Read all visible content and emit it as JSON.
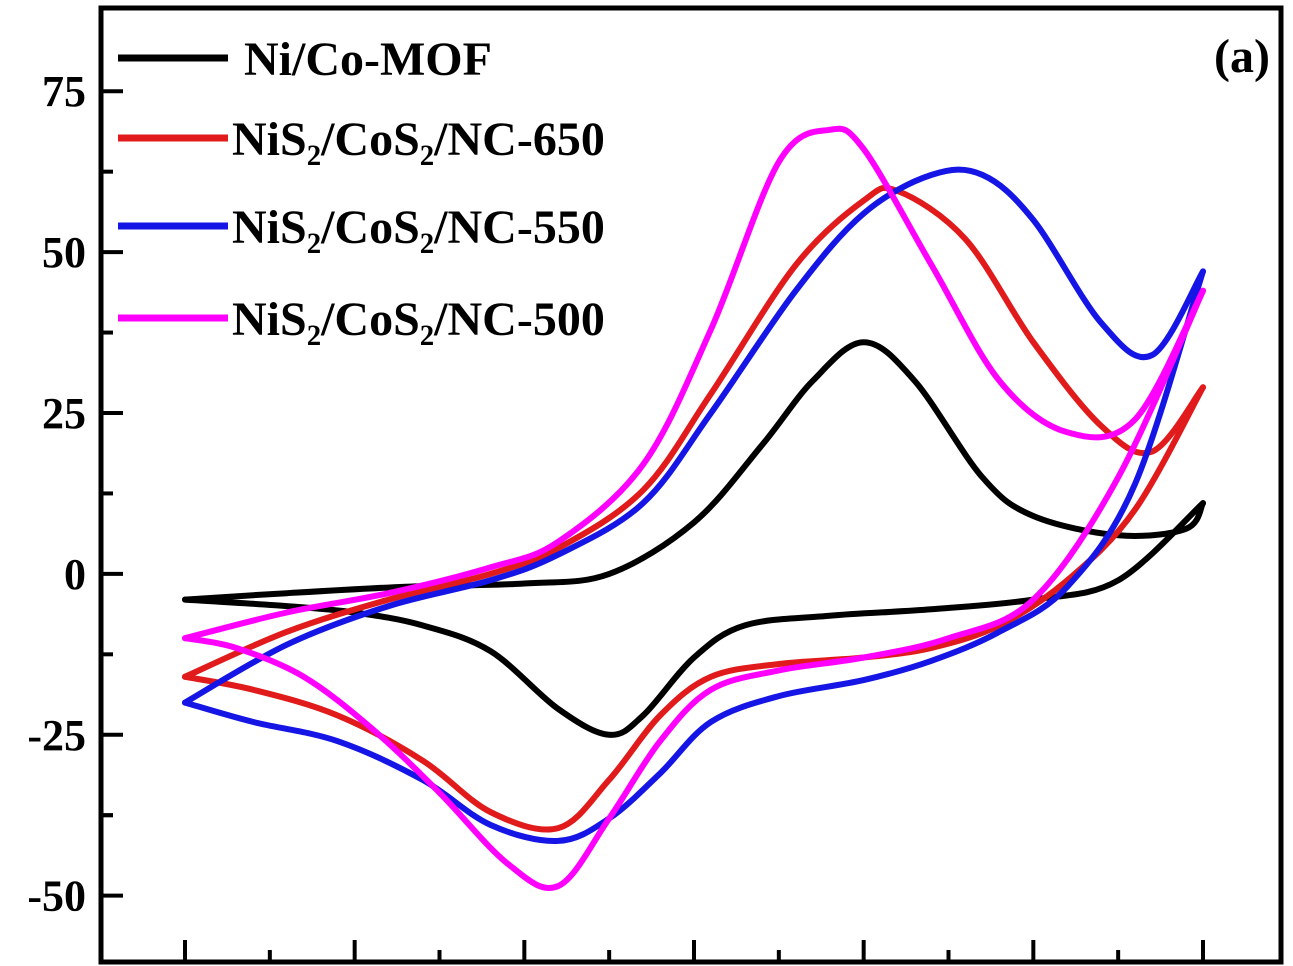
{
  "chart_data": {
    "type": "line",
    "title": "",
    "xlabel": "",
    "ylabel": "",
    "panel_label": "(a)",
    "ylim": [
      -60,
      87
    ],
    "xlim": [
      -0.1,
      0.65
    ],
    "yticks": [
      -50,
      -25,
      0,
      25,
      50,
      75
    ],
    "ytick_labels": [
      "-50",
      "-25",
      "0",
      "25",
      "50",
      "75"
    ],
    "xticks": [
      0.0,
      0.1,
      0.2,
      0.3,
      0.4,
      0.5,
      0.6
    ],
    "grid": false,
    "legend_position": "top-left",
    "series": [
      {
        "name": "Ni/Co-MOF",
        "color": "#000000",
        "forward": {
          "x": [
            0.0,
            0.06,
            0.13,
            0.2,
            0.25,
            0.3,
            0.34,
            0.37,
            0.4,
            0.43,
            0.47,
            0.5,
            0.55,
            0.59,
            0.6
          ],
          "y": [
            -4,
            -3,
            -2,
            -1.5,
            0,
            8,
            20,
            30,
            36,
            30,
            15,
            9,
            6,
            7,
            11
          ]
        },
        "reverse": {
          "x": [
            0.6,
            0.55,
            0.5,
            0.44,
            0.38,
            0.33,
            0.3,
            0.27,
            0.25,
            0.22,
            0.18,
            0.14,
            0.1,
            0.06,
            0.0
          ],
          "y": [
            11,
            -1,
            -4,
            -5.5,
            -6.5,
            -8,
            -13,
            -22,
            -25,
            -21,
            -12,
            -8,
            -6,
            -5,
            -4
          ]
        }
      },
      {
        "name": "NiS₂/CoS₂/NC-650",
        "color": "#e11b1b",
        "forward": {
          "x": [
            0.0,
            0.06,
            0.12,
            0.18,
            0.22,
            0.27,
            0.31,
            0.36,
            0.4,
            0.42,
            0.46,
            0.5,
            0.54,
            0.57,
            0.6
          ],
          "y": [
            -16,
            -9,
            -4,
            0,
            4,
            13,
            28,
            48,
            58,
            59.5,
            52,
            36,
            23,
            19,
            29
          ]
        },
        "reverse": {
          "x": [
            0.6,
            0.56,
            0.52,
            0.48,
            0.44,
            0.4,
            0.35,
            0.31,
            0.28,
            0.25,
            0.22,
            0.18,
            0.14,
            0.09,
            0.04,
            0.0
          ],
          "y": [
            29,
            10,
            -1,
            -8,
            -11.5,
            -13,
            -14,
            -16,
            -22,
            -32,
            -39.5,
            -37,
            -29,
            -22,
            -18,
            -16
          ]
        }
      },
      {
        "name": "NiS₂/CoS₂/NC-550",
        "color": "#1515e6",
        "forward": {
          "x": [
            0.0,
            0.06,
            0.12,
            0.18,
            0.22,
            0.27,
            0.31,
            0.36,
            0.4,
            0.44,
            0.47,
            0.5,
            0.54,
            0.57,
            0.6
          ],
          "y": [
            -20,
            -11,
            -5,
            -1,
            3,
            11,
            25,
            44,
            56,
            62,
            62,
            55,
            39,
            34,
            47
          ]
        },
        "reverse": {
          "x": [
            0.6,
            0.56,
            0.52,
            0.48,
            0.44,
            0.4,
            0.35,
            0.31,
            0.28,
            0.25,
            0.22,
            0.18,
            0.14,
            0.09,
            0.04,
            0.0
          ],
          "y": [
            47,
            14,
            -2,
            -9,
            -13.5,
            -16.5,
            -19,
            -23,
            -31,
            -38,
            -41.5,
            -39,
            -32,
            -26,
            -23,
            -20
          ]
        }
      },
      {
        "name": "NiS₂/CoS₂/NC-500",
        "color": "#ff00ff",
        "forward": {
          "x": [
            0.0,
            0.06,
            0.12,
            0.18,
            0.22,
            0.27,
            0.31,
            0.35,
            0.38,
            0.4,
            0.44,
            0.48,
            0.52,
            0.56,
            0.6
          ],
          "y": [
            -10,
            -6,
            -3,
            1,
            5,
            17,
            38,
            64,
            69,
            66,
            48,
            30,
            22,
            24,
            44
          ]
        },
        "reverse": {
          "x": [
            0.6,
            0.55,
            0.5,
            0.45,
            0.4,
            0.35,
            0.31,
            0.28,
            0.25,
            0.22,
            0.19,
            0.15,
            0.11,
            0.07,
            0.03,
            0.0
          ],
          "y": [
            44,
            15,
            -4,
            -10,
            -13,
            -15,
            -18,
            -26,
            -38,
            -48.5,
            -45,
            -34,
            -24,
            -16,
            -11.5,
            -10
          ]
        }
      }
    ]
  }
}
